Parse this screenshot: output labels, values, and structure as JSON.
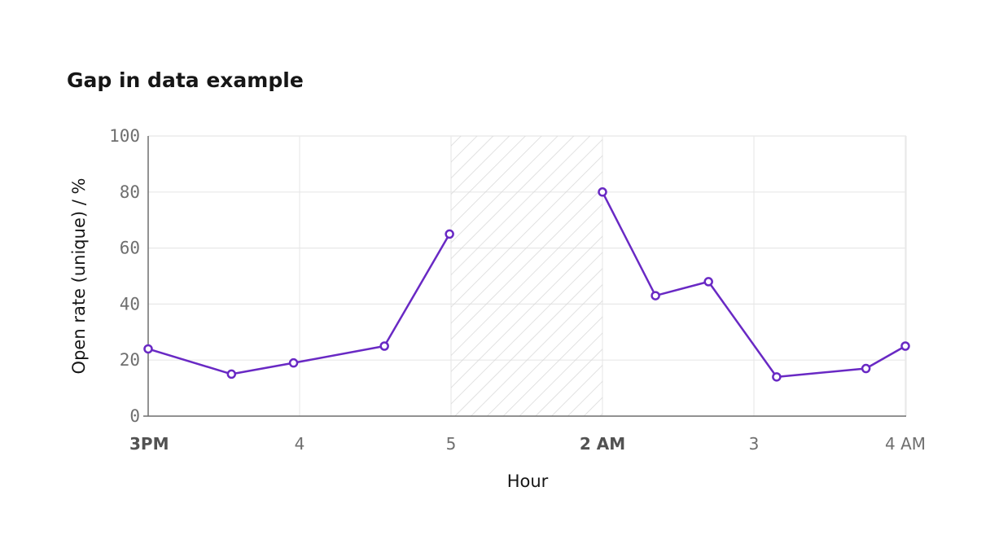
{
  "chart_data": {
    "type": "line",
    "title": "Gap in data example",
    "xlabel": "Hour",
    "ylabel": "Open rate (unique) / %",
    "ylim": [
      0,
      100
    ],
    "yticks": [
      0,
      20,
      40,
      60,
      80,
      100
    ],
    "xticks": [
      {
        "label": "3PM",
        "hour": 15,
        "major": true
      },
      {
        "label": "4",
        "hour": 16,
        "major": false
      },
      {
        "label": "5",
        "hour": 17,
        "major": false
      },
      {
        "label": "2 AM",
        "hour": 26,
        "major": true
      },
      {
        "label": "3",
        "hour": 27,
        "major": false
      },
      {
        "label": "4 AM",
        "hour": 28,
        "major": false
      }
    ],
    "gap": {
      "start_hour": 17,
      "end_hour": 26
    },
    "series": [
      {
        "color": "#6929c4",
        "segments": [
          [
            {
              "hour": 15.0,
              "value": 24
            },
            {
              "hour": 15.55,
              "value": 15
            },
            {
              "hour": 15.96,
              "value": 19
            },
            {
              "hour": 16.56,
              "value": 25
            },
            {
              "hour": 16.99,
              "value": 65
            }
          ],
          [
            {
              "hour": 26.0,
              "value": 80
            },
            {
              "hour": 26.35,
              "value": 43
            },
            {
              "hour": 26.7,
              "value": 48
            },
            {
              "hour": 27.15,
              "value": 14
            },
            {
              "hour": 27.74,
              "value": 17
            },
            {
              "hour": 28.0,
              "value": 25
            }
          ]
        ]
      }
    ]
  }
}
